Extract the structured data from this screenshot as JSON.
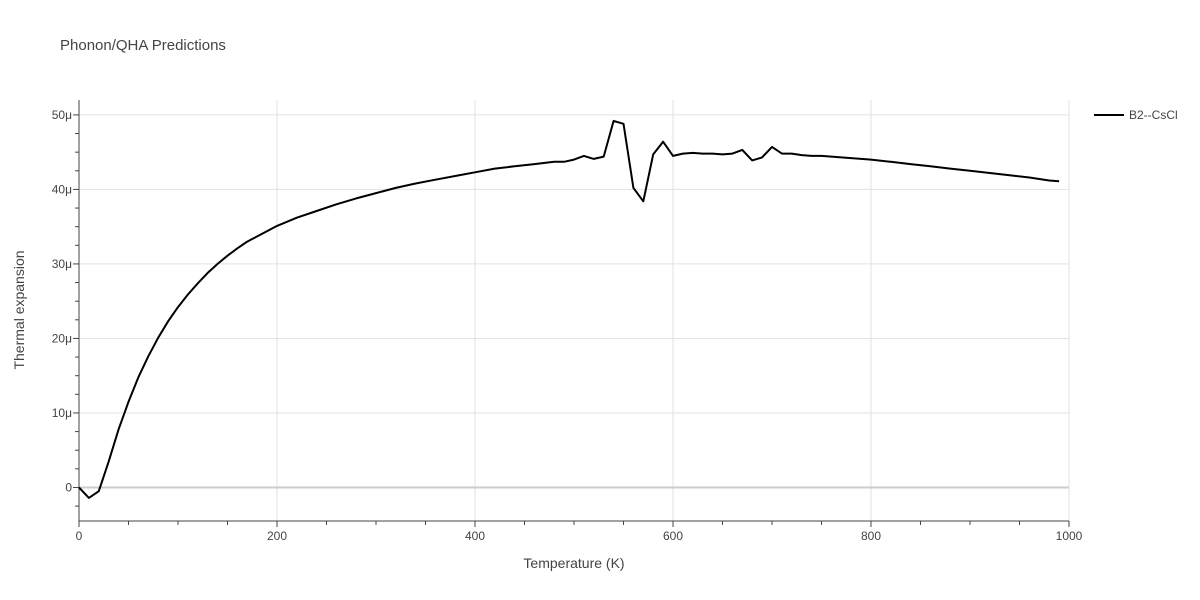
{
  "chart_data": {
    "type": "line",
    "title": "Phonon/QHA Predictions",
    "xlabel": "Temperature (K)",
    "ylabel": "Thermal expansion",
    "xlim": [
      0,
      1000
    ],
    "ylim": [
      -4.5,
      52
    ],
    "x_ticks": [
      0,
      200,
      400,
      600,
      800,
      1000
    ],
    "x_tick_labels": [
      "0",
      "200",
      "400",
      "600",
      "800",
      "1000"
    ],
    "y_ticks": [
      0,
      10,
      20,
      30,
      40,
      50
    ],
    "y_tick_labels": [
      "0",
      "10μ",
      "20μ",
      "30μ",
      "40μ",
      "50μ"
    ],
    "grid": true,
    "legend_position": "top-right",
    "line_color": "#000000",
    "series": [
      {
        "name": "B2--CsCl",
        "x": [
          0,
          10,
          20,
          30,
          40,
          50,
          60,
          70,
          80,
          90,
          100,
          110,
          120,
          130,
          140,
          150,
          160,
          170,
          180,
          190,
          200,
          220,
          240,
          260,
          280,
          300,
          320,
          340,
          360,
          380,
          400,
          420,
          440,
          460,
          480,
          490,
          500,
          510,
          520,
          530,
          540,
          550,
          560,
          570,
          580,
          590,
          600,
          610,
          620,
          630,
          640,
          650,
          660,
          670,
          680,
          690,
          700,
          710,
          720,
          730,
          740,
          750,
          760,
          780,
          800,
          820,
          840,
          860,
          880,
          900,
          920,
          940,
          960,
          980,
          990
        ],
        "y": [
          0.0,
          -1.4,
          -0.5,
          3.5,
          7.8,
          11.5,
          14.8,
          17.6,
          20.1,
          22.3,
          24.2,
          25.9,
          27.4,
          28.8,
          30.0,
          31.1,
          32.1,
          33.0,
          33.7,
          34.4,
          35.1,
          36.2,
          37.1,
          38.0,
          38.8,
          39.5,
          40.2,
          40.8,
          41.3,
          41.8,
          42.3,
          42.8,
          43.1,
          43.4,
          43.7,
          43.7,
          44.0,
          44.5,
          44.1,
          44.4,
          49.2,
          48.8,
          40.2,
          38.4,
          44.7,
          46.4,
          44.5,
          44.8,
          44.9,
          44.8,
          44.8,
          44.7,
          44.8,
          45.3,
          43.9,
          44.3,
          45.7,
          44.8,
          44.8,
          44.6,
          44.5,
          44.5,
          44.4,
          44.2,
          44.0,
          43.7,
          43.4,
          43.1,
          42.8,
          42.5,
          42.2,
          41.9,
          41.6,
          41.2,
          41.1
        ]
      }
    ]
  }
}
